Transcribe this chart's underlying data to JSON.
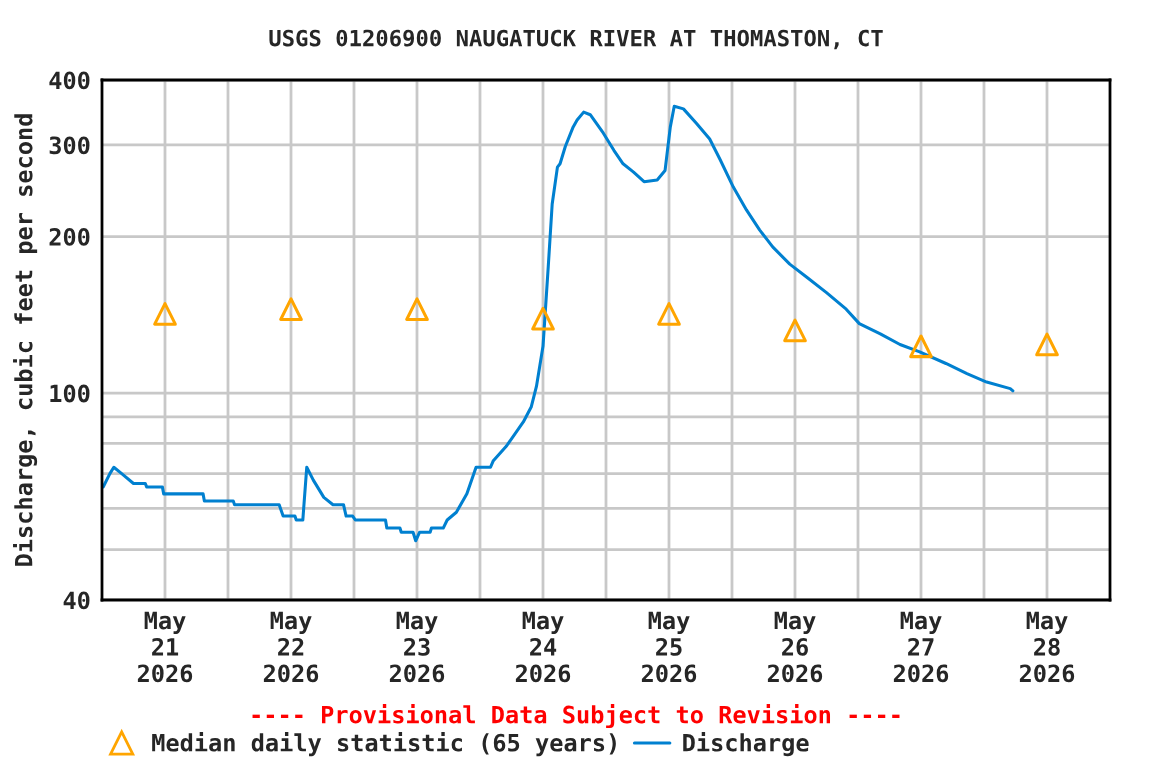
{
  "chart_data": {
    "type": "line",
    "title": "USGS 01206900 NAUGATUCK RIVER AT THOMASTON, CT",
    "ylabel": "Discharge, cubic feet per second",
    "annotations": [
      "---- Provisional Data Subject to Revision ----"
    ],
    "log": "y",
    "grid": true,
    "legend": "bottom",
    "xlim": [
      "2026-05-21T00:00",
      "2026-05-29T00:00"
    ],
    "xticks": [
      {
        "value": "2026-05-21T12:00",
        "label": "May\n21\n2026"
      },
      {
        "value": "2026-05-22T00:00",
        "label": null
      },
      {
        "value": "2026-05-22T12:00",
        "label": "May\n22\n2026"
      },
      {
        "value": "2026-05-23T00:00",
        "label": null
      },
      {
        "value": "2026-05-23T12:00",
        "label": "May\n23\n2026"
      },
      {
        "value": "2026-05-24T00:00",
        "label": null
      },
      {
        "value": "2026-05-24T12:00",
        "label": "May\n24\n2026"
      },
      {
        "value": "2026-05-25T00:00",
        "label": null
      },
      {
        "value": "2026-05-25T12:00",
        "label": "May\n25\n2026"
      },
      {
        "value": "2026-05-26T00:00",
        "label": null
      },
      {
        "value": "2026-05-26T12:00",
        "label": "May\n26\n2026"
      },
      {
        "value": "2026-05-27T00:00",
        "label": null
      },
      {
        "value": "2026-05-27T12:00",
        "label": "May\n27\n2026"
      },
      {
        "value": "2026-05-28T00:00",
        "label": null
      },
      {
        "value": "2026-05-28T12:00",
        "label": "May\n28\n2026"
      }
    ],
    "ylim": [
      40,
      400
    ],
    "yticks": [
      40,
      {
        "value": 50,
        "label": null
      },
      {
        "value": 60,
        "label": null
      },
      {
        "value": 70,
        "label": null
      },
      {
        "value": 80,
        "label": null
      },
      {
        "value": 90,
        "label": null
      },
      100,
      200,
      300,
      400
    ],
    "series": [
      {
        "name": "Median daily statistic (65 years)",
        "type": "scatter",
        "marker": "triangle",
        "color": "#ffa500",
        "x": [
          "2026-05-21T12:00",
          "2026-05-22T12:00",
          "2026-05-23T12:00",
          "2026-05-24T12:00",
          "2026-05-25T12:00",
          "2026-05-26T12:00",
          "2026-05-27T12:00",
          "2026-05-28T12:00"
        ],
        "values": [
          142,
          145,
          145,
          139,
          142,
          132,
          123,
          124
        ]
      },
      {
        "name": "Discharge",
        "color": "#0080d0",
        "x": [
          "2026-05-21T00:15",
          "2026-05-21T01:30",
          "2026-05-21T02:15",
          "2026-05-21T03:45",
          "2026-05-21T06:00",
          "2026-05-21T08:15",
          "2026-05-21T08:30",
          "2026-05-21T11:30",
          "2026-05-21T11:45",
          "2026-05-21T19:15",
          "2026-05-21T19:30",
          "2026-05-22T01:00",
          "2026-05-22T01:15",
          "2026-05-22T09:45",
          "2026-05-22T10:30",
          "2026-05-22T12:45",
          "2026-05-22T13:00",
          "2026-05-22T14:15",
          "2026-05-22T15:00",
          "2026-05-22T16:15",
          "2026-05-22T18:15",
          "2026-05-22T20:00",
          "2026-05-22T22:00",
          "2026-05-22T22:30",
          "2026-05-22T23:45",
          "2026-05-23T00:15",
          "2026-05-23T06:00",
          "2026-05-23T06:15",
          "2026-05-23T08:45",
          "2026-05-23T09:00",
          "2026-05-23T11:15",
          "2026-05-23T11:45",
          "2026-05-23T12:30",
          "2026-05-23T14:30",
          "2026-05-23T14:45",
          "2026-05-23T17:00",
          "2026-05-23T17:45",
          "2026-05-23T19:30",
          "2026-05-23T21:30",
          "2026-05-23T23:15",
          "2026-05-24T02:00",
          "2026-05-24T02:30",
          "2026-05-24T05:00",
          "2026-05-24T08:15",
          "2026-05-24T09:45",
          "2026-05-24T10:45",
          "2026-05-24T12:00",
          "2026-05-24T13:00",
          "2026-05-24T13:45",
          "2026-05-24T14:45",
          "2026-05-24T15:15",
          "2026-05-24T16:15",
          "2026-05-24T17:45",
          "2026-05-24T18:30",
          "2026-05-24T19:45",
          "2026-05-24T21:00",
          "2026-05-24T23:30",
          "2026-05-25T01:30",
          "2026-05-25T03:15",
          "2026-05-25T05:15",
          "2026-05-25T07:15",
          "2026-05-25T09:45",
          "2026-05-25T11:15",
          "2026-05-25T12:15",
          "2026-05-25T13:00",
          "2026-05-25T14:45",
          "2026-05-25T17:15",
          "2026-05-25T19:45",
          "2026-05-25T21:45",
          "2026-05-26T00:15",
          "2026-05-26T02:45",
          "2026-05-26T05:15",
          "2026-05-26T07:45",
          "2026-05-26T11:00",
          "2026-05-26T14:15",
          "2026-05-26T18:00",
          "2026-05-26T21:45",
          "2026-05-27T00:15",
          "2026-05-27T04:15",
          "2026-05-27T08:00",
          "2026-05-27T11:45",
          "2026-05-27T16:45",
          "2026-05-27T20:45",
          "2026-05-28T00:30",
          "2026-05-28T05:00",
          "2026-05-28T05:30"
        ],
        "values": [
          66,
          70,
          72,
          70,
          67,
          67,
          66,
          66,
          64,
          64,
          62,
          62,
          61,
          61,
          58,
          58,
          57,
          57,
          72,
          68,
          63,
          61,
          61,
          58,
          58,
          57,
          57,
          55,
          55,
          54,
          54,
          52,
          54,
          54,
          55,
          55,
          57,
          59,
          64,
          72,
          72,
          74,
          79,
          88,
          94,
          103,
          123,
          175,
          231,
          272,
          276,
          298,
          325,
          335,
          347,
          343,
          316,
          293,
          276,
          266,
          255,
          257,
          268,
          325,
          356,
          352,
          330,
          308,
          281,
          249,
          225,
          206,
          191,
          177,
          167,
          156,
          145,
          136,
          130,
          124,
          120,
          114,
          109,
          105,
          102,
          101
        ]
      }
    ]
  }
}
